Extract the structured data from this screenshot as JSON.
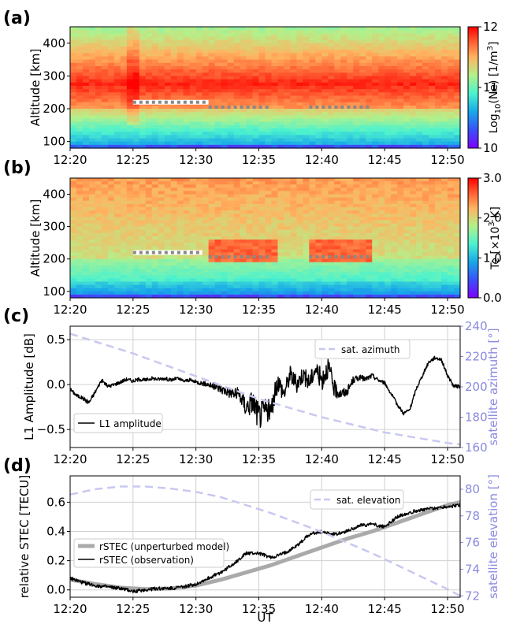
{
  "chart_data": [
    {
      "panel_label": "(a)",
      "type": "heatmap",
      "ylabel": "Altitude [km]",
      "xlim": [
        "12:20",
        "12:51"
      ],
      "ylim": [
        80,
        450
      ],
      "xticks": [
        "12:20",
        "12:25",
        "12:30",
        "12:35",
        "12:40",
        "12:45",
        "12:50"
      ],
      "yticks": [
        100,
        200,
        300,
        400
      ],
      "colorbar": {
        "label_main": "Log",
        "label_sub": "10",
        "label_rest": "(Ne) [1/m",
        "label_sup": "3",
        "label_end": "]",
        "range": [
          10,
          12
        ],
        "ticks": [
          "10",
          "11",
          "12"
        ],
        "colormap": "rainbow"
      },
      "overlay_segments": [
        {
          "start": "12:25",
          "end": "12:31",
          "altitude_km": 220,
          "style": "white-dotted"
        },
        {
          "start": "12:31",
          "end": "12:36",
          "altitude_km": 205,
          "style": "grey-dotted"
        },
        {
          "start": "12:39",
          "end": "12:44",
          "altitude_km": 205,
          "style": "grey-dotted"
        }
      ]
    },
    {
      "panel_label": "(b)",
      "type": "heatmap",
      "ylabel": "Altitude [km]",
      "xlim": [
        "12:20",
        "12:51"
      ],
      "ylim": [
        80,
        450
      ],
      "xticks": [
        "12:20",
        "12:25",
        "12:30",
        "12:35",
        "12:40",
        "12:45",
        "12:50"
      ],
      "yticks": [
        100,
        200,
        300,
        400
      ],
      "colorbar": {
        "label_main": "Te [×10",
        "label_sup": "3",
        "label_end": " K]",
        "range": [
          0,
          3
        ],
        "ticks": [
          "0.0",
          "1.0",
          "2.0",
          "3.0"
        ],
        "colormap": "rainbow"
      },
      "overlay_segments": [
        {
          "start": "12:25",
          "end": "12:30.5",
          "altitude_km": 220,
          "style": "white-dotted"
        },
        {
          "start": "12:31",
          "end": "12:36",
          "altitude_km": 207,
          "style": "grey-dotted"
        },
        {
          "start": "12:39",
          "end": "12:44",
          "altitude_km": 207,
          "style": "grey-dotted"
        }
      ]
    },
    {
      "panel_label": "(c)",
      "type": "line",
      "ylabel": "L1 Amplitude [dB]",
      "y2label": "satellite azimuth [°]",
      "xticks": [
        "12:20",
        "12:25",
        "12:30",
        "12:35",
        "12:40",
        "12:45",
        "12:50"
      ],
      "ylim": [
        -0.7,
        0.65
      ],
      "yticks": [
        "−0.5",
        "0.0",
        "0.5"
      ],
      "y2lim": [
        160,
        240
      ],
      "y2ticks": [
        "160",
        "180",
        "200",
        "220",
        "240"
      ],
      "grid": true,
      "series": [
        {
          "name": "L1 amplitude",
          "axis": "left",
          "color": "#000000",
          "style": "solid",
          "x_minutes": [
            0,
            0.5,
            1,
            1.5,
            2,
            2.5,
            3,
            3.5,
            4,
            4.5,
            5,
            5.5,
            6,
            6.5,
            7,
            7.5,
            8,
            8.5,
            9,
            9.5,
            10,
            11,
            12,
            13,
            13.5,
            14,
            14.5,
            15,
            15.5,
            16,
            16.5,
            17,
            17.5,
            18,
            18.5,
            19,
            19.5,
            20,
            20.5,
            21,
            21.5,
            22,
            22.5,
            23,
            23.5,
            24,
            24.5,
            25,
            25.5,
            26,
            26.5,
            27,
            27.5,
            28,
            28.5,
            29,
            29.5,
            30,
            30.5,
            31
          ],
          "values": [
            -0.05,
            -0.12,
            -0.15,
            -0.2,
            -0.08,
            0.05,
            -0.02,
            0.0,
            0.03,
            0.06,
            0.04,
            0.06,
            0.05,
            0.07,
            0.06,
            0.07,
            0.05,
            0.07,
            0.04,
            0.05,
            0.03,
            0.0,
            -0.05,
            -0.1,
            -0.12,
            -0.25,
            -0.18,
            -0.35,
            -0.28,
            -0.3,
            0.05,
            -0.1,
            0.12,
            0.0,
            0.12,
            0.02,
            0.18,
            0.05,
            0.2,
            -0.05,
            -0.1,
            -0.08,
            0.05,
            0.08,
            0.06,
            0.1,
            0.05,
            0.02,
            -0.1,
            -0.22,
            -0.32,
            -0.28,
            -0.05,
            0.1,
            0.25,
            0.3,
            0.28,
            0.1,
            -0.02,
            -0.02
          ],
          "noise": [
            0.02,
            0.02,
            0.02,
            0.03,
            0.02,
            0.02,
            0.02,
            0.02,
            0.02,
            0.02,
            0.02,
            0.02,
            0.02,
            0.02,
            0.02,
            0.02,
            0.02,
            0.02,
            0.02,
            0.02,
            0.02,
            0.03,
            0.05,
            0.07,
            0.09,
            0.12,
            0.14,
            0.16,
            0.14,
            0.12,
            0.12,
            0.1,
            0.1,
            0.1,
            0.1,
            0.1,
            0.1,
            0.12,
            0.12,
            0.1,
            0.06,
            0.05,
            0.04,
            0.03,
            0.03,
            0.03,
            0.02,
            0.02,
            0.02,
            0.02,
            0.02,
            0.02,
            0.02,
            0.02,
            0.02,
            0.02,
            0.02,
            0.02,
            0.02,
            0.02
          ]
        },
        {
          "name": "sat. azimuth",
          "axis": "right",
          "color": "#c8c8f0",
          "style": "dashed",
          "x_minutes": [
            0,
            5,
            10,
            15,
            20,
            25,
            30,
            31
          ],
          "values": [
            235,
            222,
            207,
            192,
            180,
            170,
            163,
            162
          ]
        }
      ]
    },
    {
      "panel_label": "(d)",
      "type": "line",
      "xlabel": "UT",
      "ylabel": "relative STEC [TECU]",
      "y2label": "satellite elevation [°]",
      "xticks": [
        "12:20",
        "12:25",
        "12:30",
        "12:35",
        "12:40",
        "12:45",
        "12:50"
      ],
      "ylim": [
        -0.05,
        0.78
      ],
      "yticks": [
        "0.0",
        "0.2",
        "0.4",
        "0.6"
      ],
      "y2lim": [
        71.9,
        81
      ],
      "y2ticks": [
        "72",
        "74",
        "76",
        "78",
        "80"
      ],
      "grid": true,
      "series": [
        {
          "name": "rSTEC (unperturbed model)",
          "axis": "left",
          "color": "#aaaaaa",
          "style": "thick",
          "x_minutes": [
            0,
            2,
            4,
            6,
            8,
            10,
            12,
            14,
            16,
            18,
            20,
            22,
            24,
            26,
            28,
            30,
            31
          ],
          "values": [
            0.07,
            0.04,
            0.015,
            0.005,
            0.01,
            0.03,
            0.07,
            0.12,
            0.17,
            0.23,
            0.29,
            0.35,
            0.4,
            0.46,
            0.52,
            0.58,
            0.6
          ]
        },
        {
          "name": "rSTEC (observation)",
          "axis": "left",
          "color": "#000000",
          "style": "solid",
          "x_minutes": [
            0,
            1,
            2,
            3,
            4,
            5,
            6,
            7,
            8,
            9,
            10,
            11,
            12,
            13,
            14,
            15,
            16,
            17,
            18,
            19,
            20,
            21,
            22,
            23,
            24,
            25,
            26,
            27,
            28,
            29,
            30,
            31
          ],
          "values": [
            0.08,
            0.05,
            0.03,
            0.02,
            0.01,
            -0.01,
            0.0,
            0.01,
            0.01,
            0.02,
            0.04,
            0.08,
            0.12,
            0.18,
            0.25,
            0.25,
            0.22,
            0.25,
            0.3,
            0.38,
            0.4,
            0.38,
            0.4,
            0.44,
            0.45,
            0.43,
            0.5,
            0.53,
            0.55,
            0.56,
            0.57,
            0.58
          ],
          "noise": 0.012
        },
        {
          "name": "sat. elevation",
          "axis": "right",
          "color": "#c8c8f0",
          "style": "dashed",
          "x_minutes": [
            0,
            2,
            4,
            6,
            8,
            10,
            12,
            14,
            16,
            18,
            20,
            22,
            24,
            26,
            28,
            30,
            31
          ],
          "values": [
            79.6,
            80.0,
            80.2,
            80.2,
            80.05,
            79.8,
            79.4,
            78.8,
            78.2,
            77.5,
            76.8,
            76.0,
            75.2,
            74.3,
            73.4,
            72.5,
            72.0
          ]
        }
      ]
    }
  ]
}
